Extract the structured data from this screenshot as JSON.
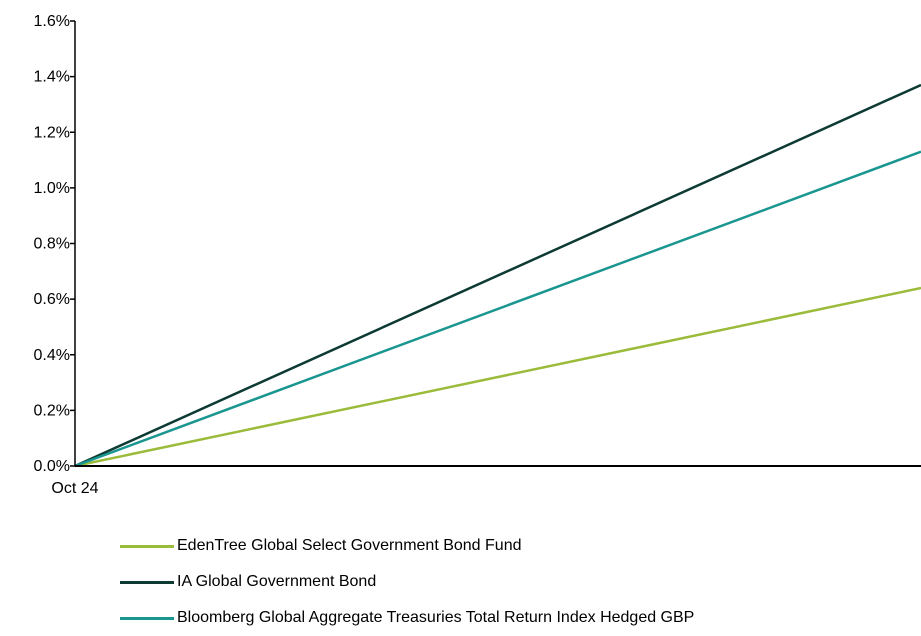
{
  "chart_data": {
    "type": "line",
    "x": [
      "Oct 24",
      ""
    ],
    "ylim": [
      0,
      1.6
    ],
    "yticks": [
      "0.0%",
      "0.2%",
      "0.4%",
      "0.6%",
      "0.8%",
      "1.0%",
      "1.2%",
      "1.4%",
      "1.6%"
    ],
    "xticks": [
      "Oct 24"
    ],
    "grid": false,
    "legend_position": "bottom",
    "series": [
      {
        "name": "EdenTree Global Select Government Bond Fund",
        "values": [
          0,
          0.64
        ],
        "color": "#9bbb3b"
      },
      {
        "name": "IA Global Government Bond",
        "values": [
          0,
          1.37
        ],
        "color": "#0d3b34"
      },
      {
        "name": "Bloomberg Global Aggregate Treasuries Total Return Index Hedged GBP",
        "values": [
          0,
          1.13
        ],
        "color": "#1a9690"
      }
    ]
  }
}
